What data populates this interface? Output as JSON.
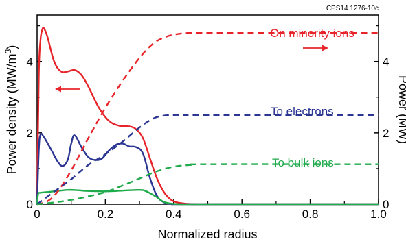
{
  "figure_code": "CPS14.1276-10c",
  "chart_data": {
    "type": "line",
    "xlabel": "Normalized radius",
    "ylabel_left": "Power density (MW/m",
    "ylabel_left_sup": "3",
    "ylabel_left_close": ")",
    "ylabel_right": "Power (MW)",
    "xlim": [
      0,
      1.0
    ],
    "ylim_left": [
      0,
      5.3
    ],
    "ylim_right": [
      0,
      5.3
    ],
    "x_ticks": [
      "0",
      "0.2",
      "0.4",
      "0.6",
      "0.8",
      "1.0"
    ],
    "x_tick_values": [
      0,
      0.2,
      0.4,
      0.6,
      0.8,
      1.0
    ],
    "y_left_ticks": [
      "0",
      "2",
      "4"
    ],
    "y_left_tick_values": [
      0,
      2,
      4
    ],
    "y_right_ticks": [
      "0",
      "2",
      "4"
    ],
    "y_right_tick_values": [
      0,
      2,
      4
    ],
    "grid": false,
    "annotations": {
      "left_arrow_color": "#e8242b",
      "right_arrow_color": "#e8242b"
    },
    "series": [
      {
        "label": "On minority ions",
        "color": "#e8242b",
        "kind": "density",
        "axis": "left",
        "x": [
          0,
          0.005,
          0.01,
          0.015,
          0.02,
          0.03,
          0.05,
          0.07,
          0.09,
          0.11,
          0.13,
          0.15,
          0.18,
          0.21,
          0.24,
          0.27,
          0.29,
          0.31,
          0.33,
          0.35,
          0.37,
          0.39,
          0.41,
          0.44,
          0.47,
          0.5,
          1.0
        ],
        "y": [
          0,
          3.6,
          4.6,
          4.88,
          4.93,
          4.7,
          4.0,
          3.72,
          3.72,
          3.76,
          3.62,
          3.3,
          2.72,
          2.34,
          2.2,
          2.18,
          2.1,
          1.85,
          1.3,
          0.75,
          0.36,
          0.14,
          0.05,
          0.01,
          0,
          0,
          0
        ]
      },
      {
        "label": "To electrons",
        "color": "#2b3592",
        "kind": "density",
        "axis": "left",
        "x": [
          0,
          0.005,
          0.01,
          0.02,
          0.04,
          0.06,
          0.075,
          0.09,
          0.1,
          0.11,
          0.13,
          0.15,
          0.17,
          0.19,
          0.21,
          0.23,
          0.25,
          0.27,
          0.29,
          0.31,
          0.33,
          0.35,
          0.37,
          0.39,
          0.41,
          0.45,
          1.0
        ],
        "y": [
          0,
          1.5,
          1.95,
          1.88,
          1.55,
          1.2,
          1.07,
          1.25,
          1.7,
          1.93,
          1.6,
          1.32,
          1.24,
          1.28,
          1.5,
          1.66,
          1.7,
          1.62,
          1.6,
          1.42,
          0.75,
          0.25,
          0.06,
          0.01,
          0,
          0,
          0
        ]
      },
      {
        "label": "To bulk ions",
        "color": "#1faa4b",
        "kind": "density",
        "axis": "left",
        "x": [
          0,
          0.003,
          0.01,
          0.03,
          0.06,
          0.09,
          0.12,
          0.15,
          0.2,
          0.25,
          0.3,
          0.32,
          0.35,
          0.37,
          0.39,
          0.42,
          0.5,
          1.0
        ],
        "y": [
          0,
          0.28,
          0.32,
          0.34,
          0.37,
          0.4,
          0.39,
          0.37,
          0.36,
          0.38,
          0.4,
          0.36,
          0.2,
          0.07,
          0.02,
          0,
          0,
          0
        ]
      },
      {
        "label": "On minority ions",
        "color": "#e8242b",
        "kind": "power",
        "axis": "right",
        "x": [
          0,
          0.03,
          0.06,
          0.1,
          0.15,
          0.2,
          0.25,
          0.3,
          0.34,
          0.38,
          0.42,
          0.46,
          0.5,
          0.6,
          1.0
        ],
        "y": [
          0,
          0.08,
          0.35,
          0.95,
          1.85,
          2.7,
          3.45,
          4.1,
          4.5,
          4.7,
          4.78,
          4.8,
          4.8,
          4.8,
          4.8
        ]
      },
      {
        "label": "To electrons",
        "color": "#2b3592",
        "kind": "power",
        "axis": "right",
        "x": [
          0,
          0.05,
          0.1,
          0.15,
          0.2,
          0.25,
          0.3,
          0.34,
          0.37,
          0.4,
          0.43,
          0.5,
          1.0
        ],
        "y": [
          0,
          0.35,
          0.7,
          1.1,
          1.4,
          1.75,
          2.15,
          2.4,
          2.48,
          2.5,
          2.5,
          2.5,
          2.5
        ]
      },
      {
        "label": "To bulk ions",
        "color": "#1faa4b",
        "kind": "power",
        "axis": "right",
        "x": [
          0,
          0.05,
          0.1,
          0.15,
          0.2,
          0.25,
          0.3,
          0.35,
          0.4,
          0.45,
          0.5,
          1.0
        ],
        "y": [
          0,
          0.05,
          0.12,
          0.22,
          0.34,
          0.52,
          0.72,
          0.92,
          1.05,
          1.1,
          1.12,
          1.12
        ]
      }
    ],
    "legend_labels": [
      {
        "text": "On minority ions",
        "color": "#e8242b"
      },
      {
        "text": "To electrons",
        "color": "#2b3592"
      },
      {
        "text": "To bulk ions",
        "color": "#1faa4b"
      }
    ]
  }
}
